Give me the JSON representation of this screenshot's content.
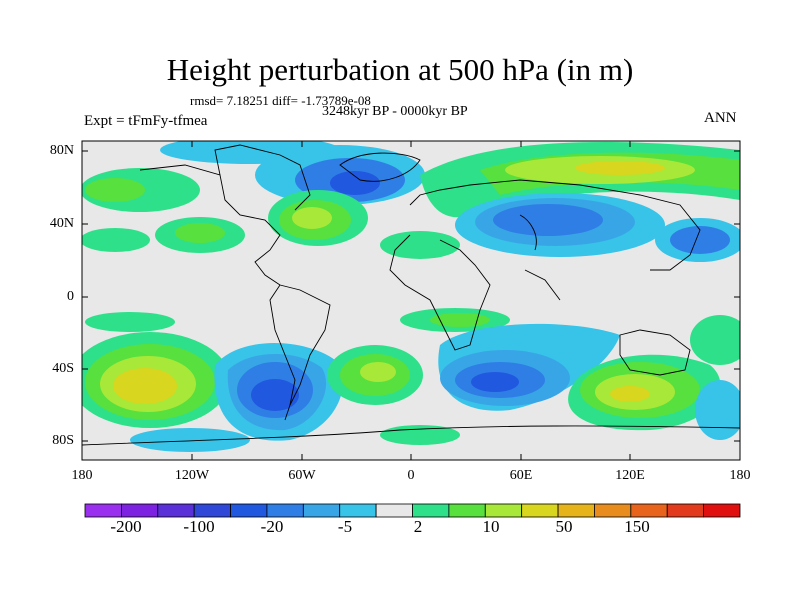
{
  "header": {
    "title": "Height perturbation at 500 hPa (in m)",
    "rmsd_text": "rmsd= 7.18251 diff= -1.73789e-08",
    "period": "3248kyr BP - 0000kyr BP",
    "experiment": "Expt = tFmFy-tfmea",
    "season": "ANN"
  },
  "map": {
    "lat_labels": [
      "80N",
      "40N",
      "0",
      "40S",
      "80S"
    ],
    "lon_labels": [
      "180",
      "120W",
      "60W",
      "0",
      "60E",
      "120E",
      "180"
    ],
    "background_color": "#e8e8e8"
  },
  "colorbar": {
    "colors": [
      "#9b2ff0",
      "#7c22e0",
      "#5a30d8",
      "#2f48d8",
      "#2058e0",
      "#2f7ee6",
      "#38a6e6",
      "#38c3e8",
      "#e8e8e8",
      "#2ee08a",
      "#58e03e",
      "#a8e838",
      "#d8d61e",
      "#e6b31a",
      "#e88c1e",
      "#e8641c",
      "#e23a1c",
      "#e01010"
    ],
    "labels": [
      "-200",
      "-100",
      "-20",
      "-5",
      "2",
      "10",
      "50",
      "150"
    ]
  }
}
